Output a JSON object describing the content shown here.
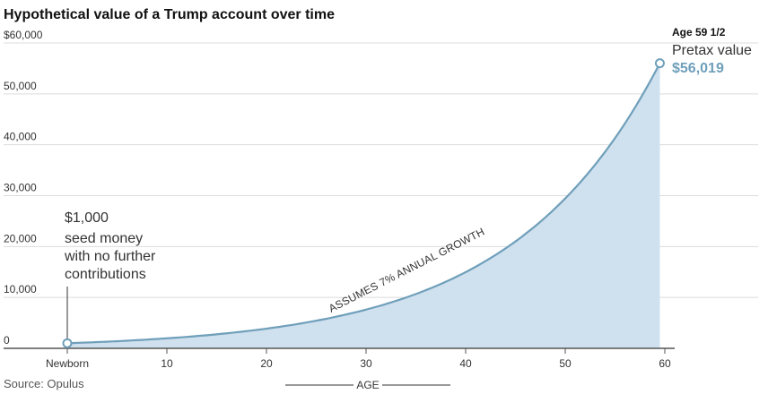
{
  "chart_data": {
    "type": "area",
    "title": "Hypothetical value of a Trump account over time",
    "xlabel": "AGE",
    "ylabel": "",
    "xlim": [
      0,
      60
    ],
    "ylim": [
      0,
      60000
    ],
    "x_ticks": [
      0,
      10,
      20,
      30,
      40,
      50,
      60
    ],
    "x_tick_labels": [
      "Newborn",
      "10",
      "20",
      "30",
      "40",
      "50",
      "60"
    ],
    "y_ticks": [
      0,
      10000,
      20000,
      30000,
      40000,
      50000,
      60000
    ],
    "y_tick_labels": [
      "0",
      "10,000",
      "20,000",
      "30,000",
      "40,000",
      "50,000",
      "$60,000"
    ],
    "series": [
      {
        "x": [
          0,
          5,
          10,
          15,
          20,
          25,
          30,
          35,
          40,
          45,
          50,
          55,
          59.5
        ],
        "values": [
          1000,
          1403,
          1967,
          2759,
          3870,
          5427,
          7612,
          10677,
          14974,
          21002,
          29457,
          41315,
          56019
        ]
      }
    ],
    "grid": true,
    "annotations": {
      "start": {
        "value": "$1,000",
        "lines": [
          "seed money",
          "with no further",
          "contributions"
        ]
      },
      "growth": "ASSUMES 7% ANNUAL GROWTH",
      "end": {
        "age": "Age 59 1/2",
        "label": "Pretax value",
        "value": "$56,019"
      }
    },
    "source": "Source: Opulus",
    "colors": {
      "fill": "#cfe0ee",
      "line": "#6f9fba",
      "end_value": "#6f9fba"
    }
  }
}
